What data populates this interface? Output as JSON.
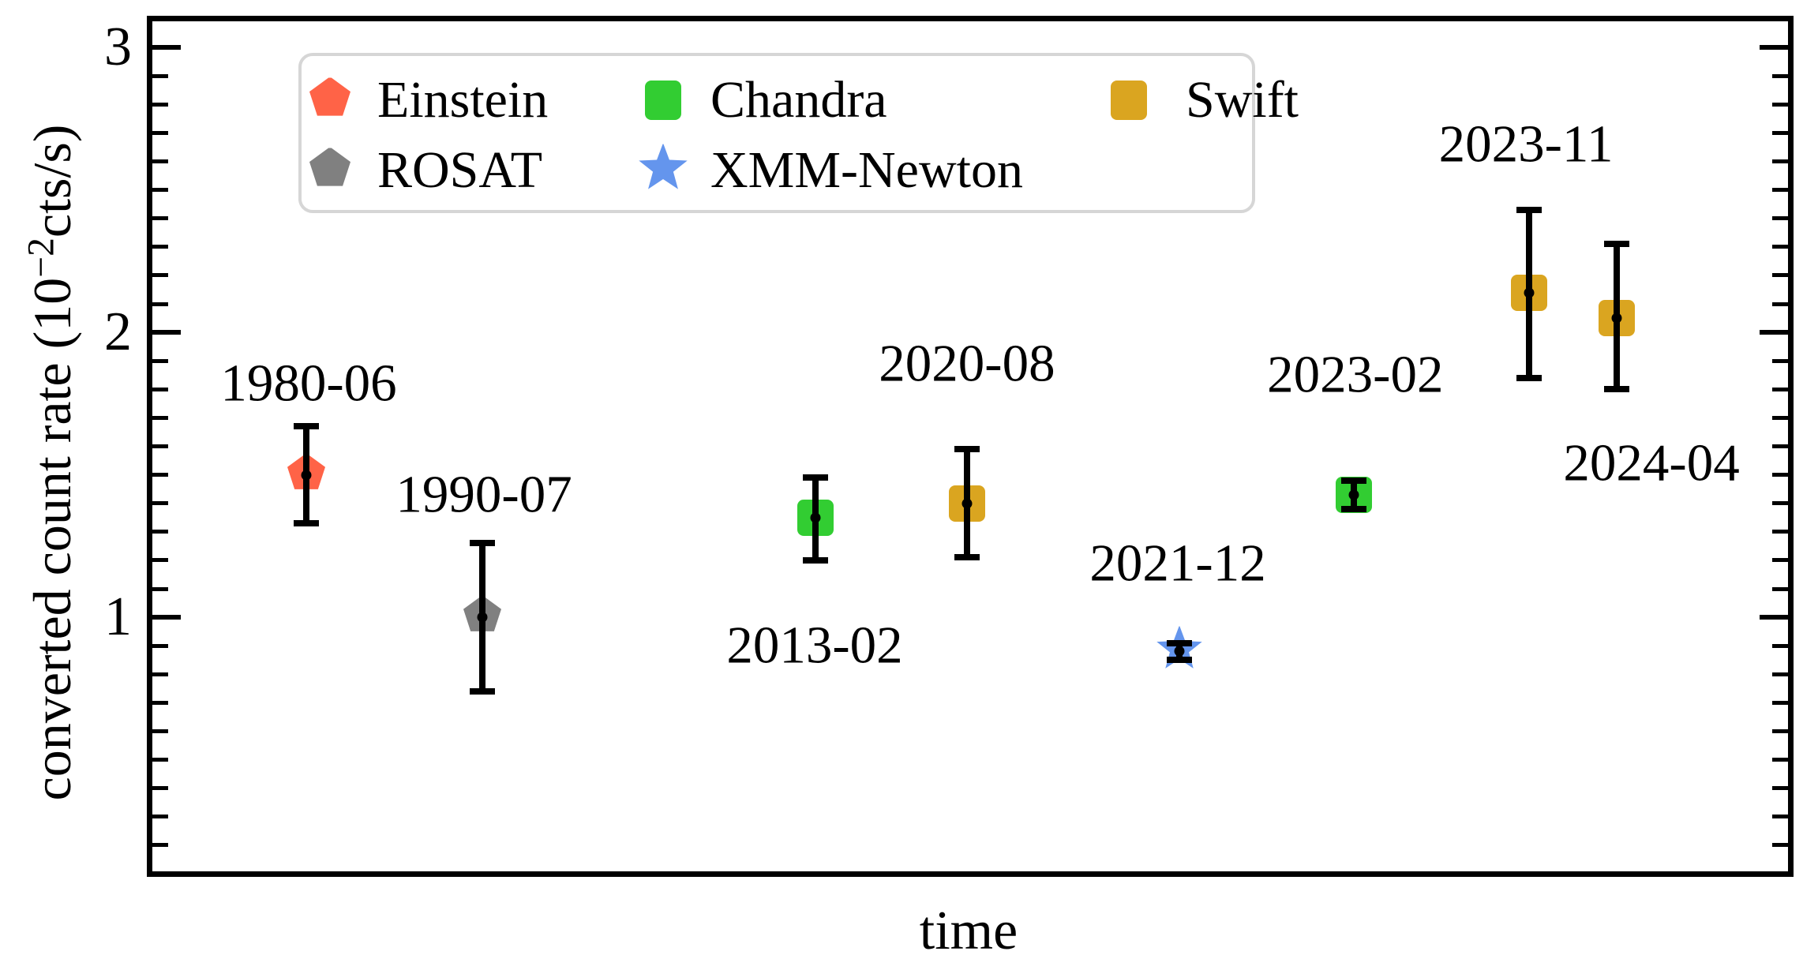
{
  "chart_data": {
    "type": "scatter",
    "title": "",
    "xlabel": "time",
    "ylabel": "converted count rate (10−2cts/s)",
    "ylabel_parts": {
      "prefix": "converted count rate (10",
      "superscript": "−2",
      "suffix": "cts/s)"
    },
    "ylim": [
      0.1,
      3.1
    ],
    "yticks_major": [
      1,
      2,
      3
    ],
    "ytick_labels": [
      "1",
      "2",
      "3"
    ],
    "ytick_minor_step": 0.1,
    "xticks": [],
    "grid": false,
    "legend_position": "upper left",
    "legend": [
      {
        "label": "Einstein",
        "marker": "pentagon",
        "color": "#FF6347",
        "col": 0,
        "row": 0
      },
      {
        "label": "ROSAT",
        "marker": "pentagon",
        "color": "#808080",
        "col": 0,
        "row": 1
      },
      {
        "label": "Chandra",
        "marker": "square",
        "color": "#32CD32",
        "col": 1,
        "row": 0
      },
      {
        "label": "XMM-Newton",
        "marker": "star",
        "color": "#6495ED",
        "col": 1,
        "row": 1
      },
      {
        "label": "Swift",
        "marker": "square",
        "color": "#DAA520",
        "col": 2,
        "row": 0
      }
    ],
    "points": [
      {
        "date": "1980-06",
        "mission": "Einstein",
        "marker": "pentagon",
        "color": "#FF6347",
        "x_frac": 0.0952,
        "value": 1.5,
        "err_plus": 0.17,
        "err_minus": 0.17,
        "label_x_frac": 0.0967,
        "label_y_value": 1.82
      },
      {
        "date": "1990-07",
        "mission": "ROSAT",
        "marker": "pentagon",
        "color": "#808080",
        "x_frac": 0.2025,
        "value": 1.0,
        "err_plus": 0.26,
        "err_minus": 0.26,
        "label_x_frac": 0.2035,
        "label_y_value": 1.43
      },
      {
        "date": "2013-02",
        "mission": "Chandra",
        "marker": "square",
        "color": "#32CD32",
        "x_frac": 0.4055,
        "value": 1.35,
        "err_plus": 0.14,
        "err_minus": 0.15,
        "label_x_frac": 0.405,
        "label_y_value": 0.9
      },
      {
        "date": "2020-08",
        "mission": "Swift",
        "marker": "square",
        "color": "#DAA520",
        "x_frac": 0.4978,
        "value": 1.4,
        "err_plus": 0.19,
        "err_minus": 0.19,
        "label_x_frac": 0.4978,
        "label_y_value": 1.89
      },
      {
        "date": "2021-12",
        "mission": "XMM-Newton",
        "marker": "star",
        "color": "#6495ED",
        "x_frac": 0.6272,
        "value": 0.88,
        "err_plus": 0.03,
        "err_minus": 0.03,
        "label_x_frac": 0.6263,
        "label_y_value": 1.19
      },
      {
        "date": "2023-02",
        "mission": "Chandra",
        "marker": "square",
        "color": "#32CD32",
        "x_frac": 0.7335,
        "value": 1.43,
        "err_plus": 0.05,
        "err_minus": 0.05,
        "label_x_frac": 0.7344,
        "label_y_value": 1.85
      },
      {
        "date": "2023-11",
        "mission": "Swift",
        "marker": "square",
        "color": "#DAA520",
        "x_frac": 0.8403,
        "value": 2.14,
        "err_plus": 0.29,
        "err_minus": 0.3,
        "label_x_frac": 0.8384,
        "label_y_value": 2.66
      },
      {
        "date": "2024-04",
        "mission": "Swift",
        "marker": "square",
        "color": "#DAA520",
        "x_frac": 0.8937,
        "value": 2.05,
        "err_plus": 0.26,
        "err_minus": 0.25,
        "label_x_frac": 0.9149,
        "label_y_value": 1.54
      }
    ]
  }
}
